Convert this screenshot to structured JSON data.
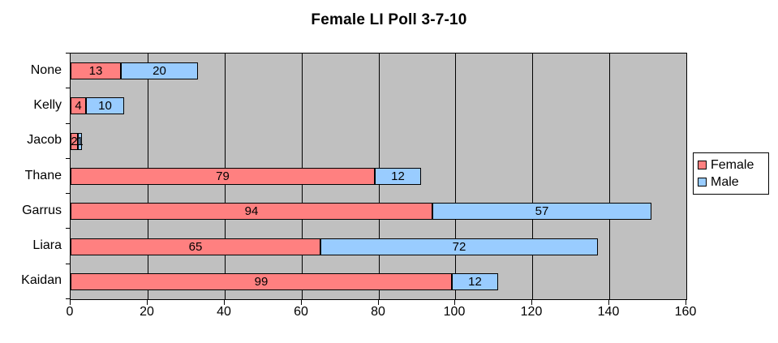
{
  "chart_data": {
    "type": "bar",
    "orientation": "horizontal",
    "stacked": true,
    "title": "Female LI Poll 3-7-10",
    "categories": [
      "None",
      "Kelly",
      "Jacob",
      "Thane",
      "Garrus",
      "Liara",
      "Kaidan"
    ],
    "series": [
      {
        "name": "Female",
        "color": "#ff8080",
        "values": [
          13,
          4,
          2,
          79,
          94,
          65,
          99
        ]
      },
      {
        "name": "Male",
        "color": "#99ccff",
        "values": [
          20,
          10,
          1,
          12,
          57,
          72,
          12
        ]
      }
    ],
    "x_axis": {
      "min": 0,
      "max": 160,
      "tick_interval": 20,
      "tick_labels": [
        "0",
        "20",
        "40",
        "60",
        "80",
        "100",
        "120",
        "140",
        "160"
      ]
    },
    "data_labels": true,
    "gridlines": "vertical-major",
    "legend_position": "right",
    "colors": {
      "plot_background": "#c0c0c0",
      "gridline": "#000000",
      "text": "#000000",
      "chart_background": "#ffffff"
    }
  }
}
